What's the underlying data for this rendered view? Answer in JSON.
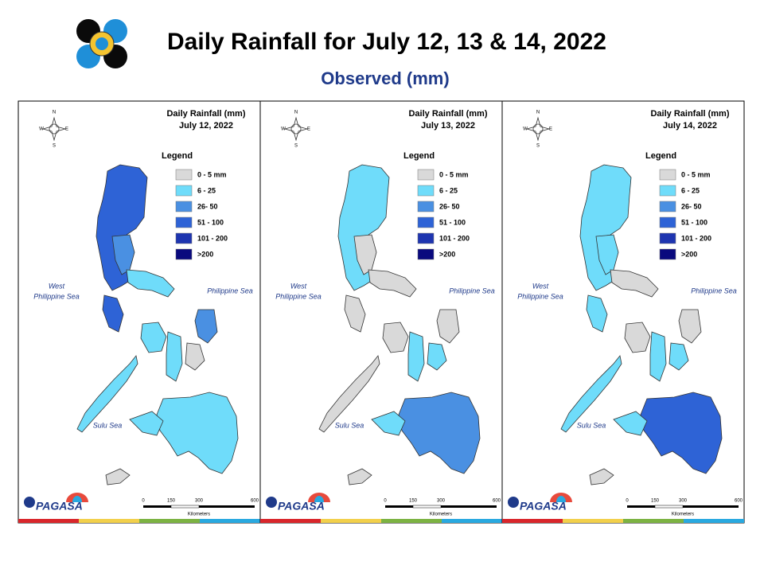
{
  "header": {
    "title": "Daily Rainfall for July 12, 13 & 14, 2022",
    "subtitle": "Observed (mm)"
  },
  "panels": [
    {
      "title": "Daily Rainfall (mm)",
      "date": "July 12, 2022"
    },
    {
      "title": "Daily Rainfall (mm)",
      "date": "July 13, 2022"
    },
    {
      "title": "Daily Rainfall (mm)",
      "date": "July 14, 2022"
    }
  ],
  "legend": {
    "title": "Legend",
    "items": [
      {
        "label": "0 - 5 mm",
        "color": "#d9d9d9"
      },
      {
        "label": "6 - 25",
        "color": "#6fdcfa"
      },
      {
        "label": "26- 50",
        "color": "#4a90e2"
      },
      {
        "label": "51 - 100",
        "color": "#2e63d6"
      },
      {
        "label": "101 - 200",
        "color": "#1e35b0"
      },
      {
        "label": ">200",
        "color": "#0a0a7e"
      }
    ]
  },
  "compass": [
    "N",
    "E",
    "S",
    "W"
  ],
  "seas": {
    "west": [
      "West",
      "Philippine Sea"
    ],
    "east": "Philippine Sea",
    "sulu": "Sulu Sea"
  },
  "scale": {
    "ticks": [
      "0",
      "150",
      "300",
      "600"
    ],
    "unit": "Kilometers"
  },
  "logo": "PAGASA"
}
